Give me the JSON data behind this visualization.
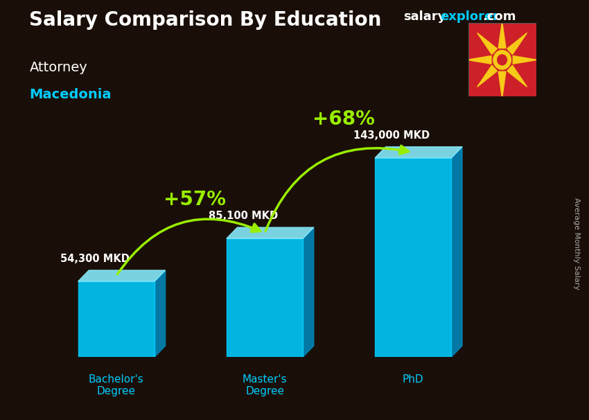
{
  "title": "Salary Comparison By Education",
  "subtitle_job": "Attorney",
  "subtitle_location": "Macedonia",
  "ylabel": "Average Monthly Salary",
  "categories": [
    "Bachelor's\nDegree",
    "Master's\nDegree",
    "PhD"
  ],
  "values": [
    54300,
    85100,
    143000
  ],
  "value_labels": [
    "54,300 MKD",
    "85,100 MKD",
    "143,000 MKD"
  ],
  "pct_labels": [
    "+57%",
    "+68%"
  ],
  "bar_face_color": "#00ccff",
  "bar_top_color": "#88eeff",
  "bar_side_color": "#0088bb",
  "background_color": "#1a0f08",
  "title_color": "#ffffff",
  "job_color": "#ffffff",
  "location_color": "#00ccff",
  "value_label_color": "#ffffff",
  "pct_label_color": "#99ee00",
  "arrow_color": "#99ee00",
  "xtick_color": "#00ccff",
  "watermark_salary_color": "#ffffff",
  "watermark_explorer_color": "#00ccff",
  "fig_width": 8.5,
  "fig_height": 6.06,
  "dpi": 100
}
